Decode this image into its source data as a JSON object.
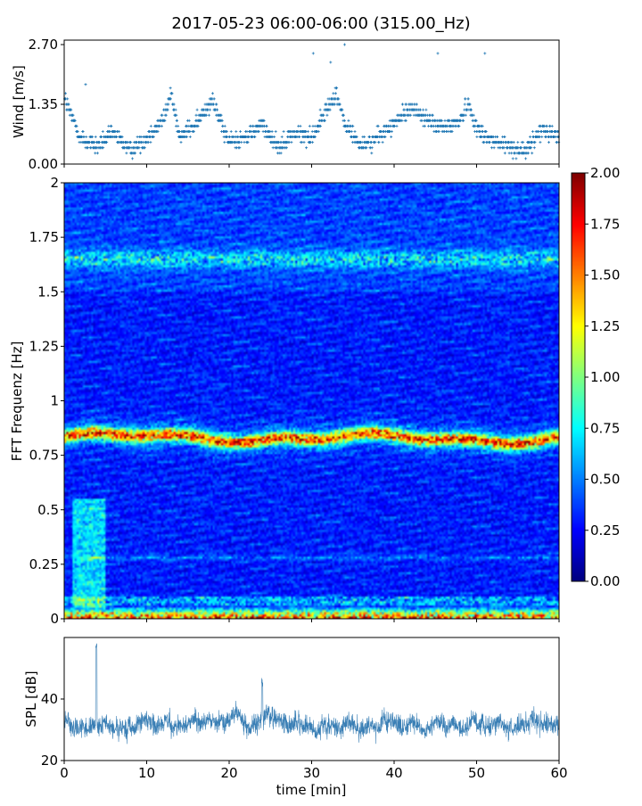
{
  "title": "2017-05-23 06:00-06:00 (315.00_Hz)",
  "chart_data": [
    {
      "type": "scatter",
      "name": "wind",
      "ylabel": "Wind [m/s]",
      "yticks": [
        "0.00",
        "1.35",
        "2.70"
      ],
      "ylim": [
        0,
        2.7
      ],
      "xlim": [
        0,
        60
      ],
      "knots_t": [
        0,
        2,
        4,
        6,
        8,
        10,
        12,
        13,
        14,
        16,
        18,
        19,
        20,
        22,
        24,
        26,
        28,
        30,
        32,
        33,
        34,
        36,
        38,
        40,
        42,
        44,
        46,
        48,
        49,
        50,
        52,
        54,
        56,
        58,
        60
      ],
      "knots_v": [
        1.5,
        0.6,
        0.4,
        0.7,
        0.3,
        0.6,
        1.0,
        1.6,
        0.6,
        0.9,
        1.5,
        0.9,
        0.5,
        0.6,
        0.9,
        0.4,
        0.7,
        0.6,
        1.3,
        1.6,
        0.9,
        0.4,
        0.6,
        0.9,
        1.3,
        1.0,
        0.8,
        1.0,
        1.4,
        0.8,
        0.5,
        0.4,
        0.3,
        0.8,
        0.6
      ],
      "outliers": [
        [
          34.0,
          2.7
        ],
        [
          30.2,
          2.5
        ],
        [
          45.3,
          2.5
        ],
        [
          51.0,
          2.5
        ],
        [
          32.3,
          2.3
        ],
        [
          2.6,
          1.8
        ]
      ]
    },
    {
      "type": "heatmap",
      "name": "spectrogram",
      "ylabel": "FFT Frequenz [Hz]",
      "yticks": [
        "0",
        "0.25",
        "0.5",
        "0.75",
        "1",
        "1.25",
        "1.5",
        "1.75",
        "2"
      ],
      "ylim": [
        0,
        2
      ],
      "xlim": [
        0,
        60
      ],
      "colorbar": {
        "min": 0,
        "max": 2,
        "ticks": [
          "0.00",
          "0.25",
          "0.50",
          "0.75",
          "1.00",
          "1.25",
          "1.50",
          "1.75",
          "2.00"
        ],
        "colormap": "jet"
      },
      "bands": [
        {
          "freq": 0.83,
          "amplitude": 1.15
        },
        {
          "freq": 0.01,
          "amplitude": 1.6
        },
        {
          "freq": 1.65,
          "amplitude": 0.45
        },
        {
          "freq": 0.28,
          "amplitude": 0.35
        }
      ]
    },
    {
      "type": "line",
      "name": "spl",
      "ylabel": "SPL [dB]",
      "xlabel": "time [min]",
      "yticks": [
        "20",
        "40"
      ],
      "ylim": [
        20,
        60
      ],
      "xlim": [
        0,
        60
      ],
      "xticks": [
        "0",
        "10",
        "20",
        "30",
        "40",
        "50",
        "60"
      ],
      "mean": 32,
      "spread": 7,
      "peaks": [
        [
          24,
          47
        ],
        [
          3.9,
          58
        ]
      ]
    }
  ]
}
